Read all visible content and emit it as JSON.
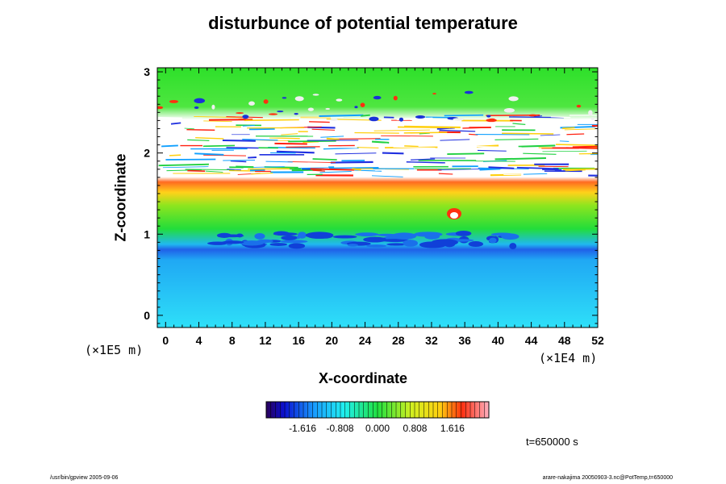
{
  "chart_data": {
    "type": "heatmap",
    "title": "disturbunce of potential temperature",
    "xlabel": "X-coordinate",
    "ylabel": "Z-coordinate",
    "x_unit": "(×1E4 m)",
    "y_unit": "(×1E5 m)",
    "xlim": [
      -1,
      52
    ],
    "ylim": [
      -0.15,
      3.05
    ],
    "x_ticks": [
      0,
      4,
      8,
      12,
      16,
      20,
      24,
      28,
      32,
      36,
      40,
      44,
      48,
      52
    ],
    "y_ticks": [
      0,
      1,
      2,
      3
    ],
    "colorbar": {
      "ticks": [
        -1.616,
        -0.808,
        0.0,
        0.808,
        1.616
      ],
      "tick_labels": [
        "-1.616",
        "-0.808",
        "0.000",
        "0.808",
        "1.616"
      ],
      "range": [
        -2.4,
        2.4
      ]
    },
    "field_bands": [
      {
        "z": [
          -0.15,
          0.82
        ],
        "value": -0.55
      },
      {
        "z": [
          0.82,
          1.02
        ],
        "value": -1.05
      },
      {
        "z": [
          1.02,
          1.55
        ],
        "value": 0.1
      },
      {
        "z": [
          1.55,
          1.72
        ],
        "value": 1.9
      },
      {
        "z": [
          1.72,
          2.4
        ],
        "value": 3.0
      },
      {
        "z": [
          2.4,
          3.05
        ],
        "value": 0.1
      }
    ],
    "annotation": "t=650000 s",
    "colors": {
      "background": "#ffffff",
      "axis": "#000000"
    }
  },
  "footer": {
    "left": "/usr/bin/gpview 2005-09-06",
    "right": "arare-nakajima 20050903-3.nc@PotTemp,t=650000"
  }
}
